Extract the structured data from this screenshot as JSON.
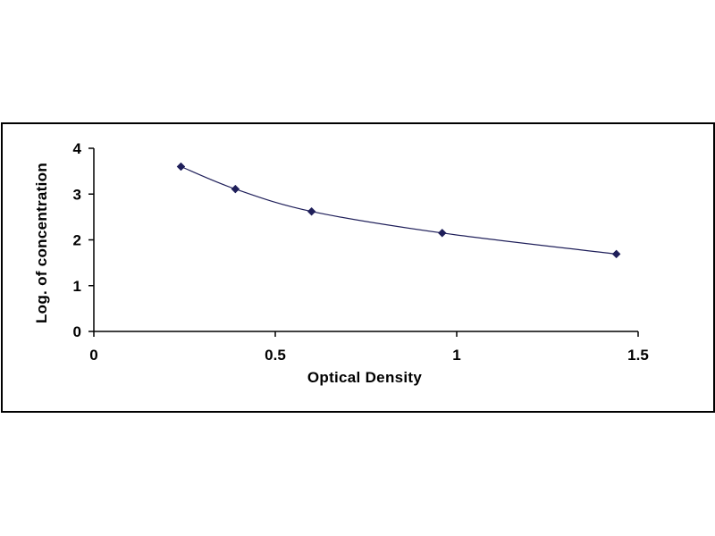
{
  "chart_data": {
    "type": "scatter",
    "title": "",
    "xlabel": "Optical Density",
    "ylabel": "Log. of concentration",
    "xlim": [
      0,
      1.5
    ],
    "ylim": [
      0,
      4
    ],
    "x_ticks": [
      "0",
      "0.5",
      "1",
      "1.5"
    ],
    "y_ticks": [
      "0",
      "1",
      "2",
      "3",
      "4"
    ],
    "grid": false,
    "legend": "none",
    "trendline": "smooth curve through points",
    "marker": "diamond",
    "series": [
      {
        "x": [
          0.24,
          0.39,
          0.6,
          0.96,
          1.44
        ],
        "y": [
          3.6,
          3.11,
          2.62,
          2.15,
          1.69
        ]
      }
    ],
    "colors": {
      "marker": "#1f1f5a",
      "line": "#1f1f5a",
      "axis": "#000000",
      "frame": "#000000"
    }
  }
}
